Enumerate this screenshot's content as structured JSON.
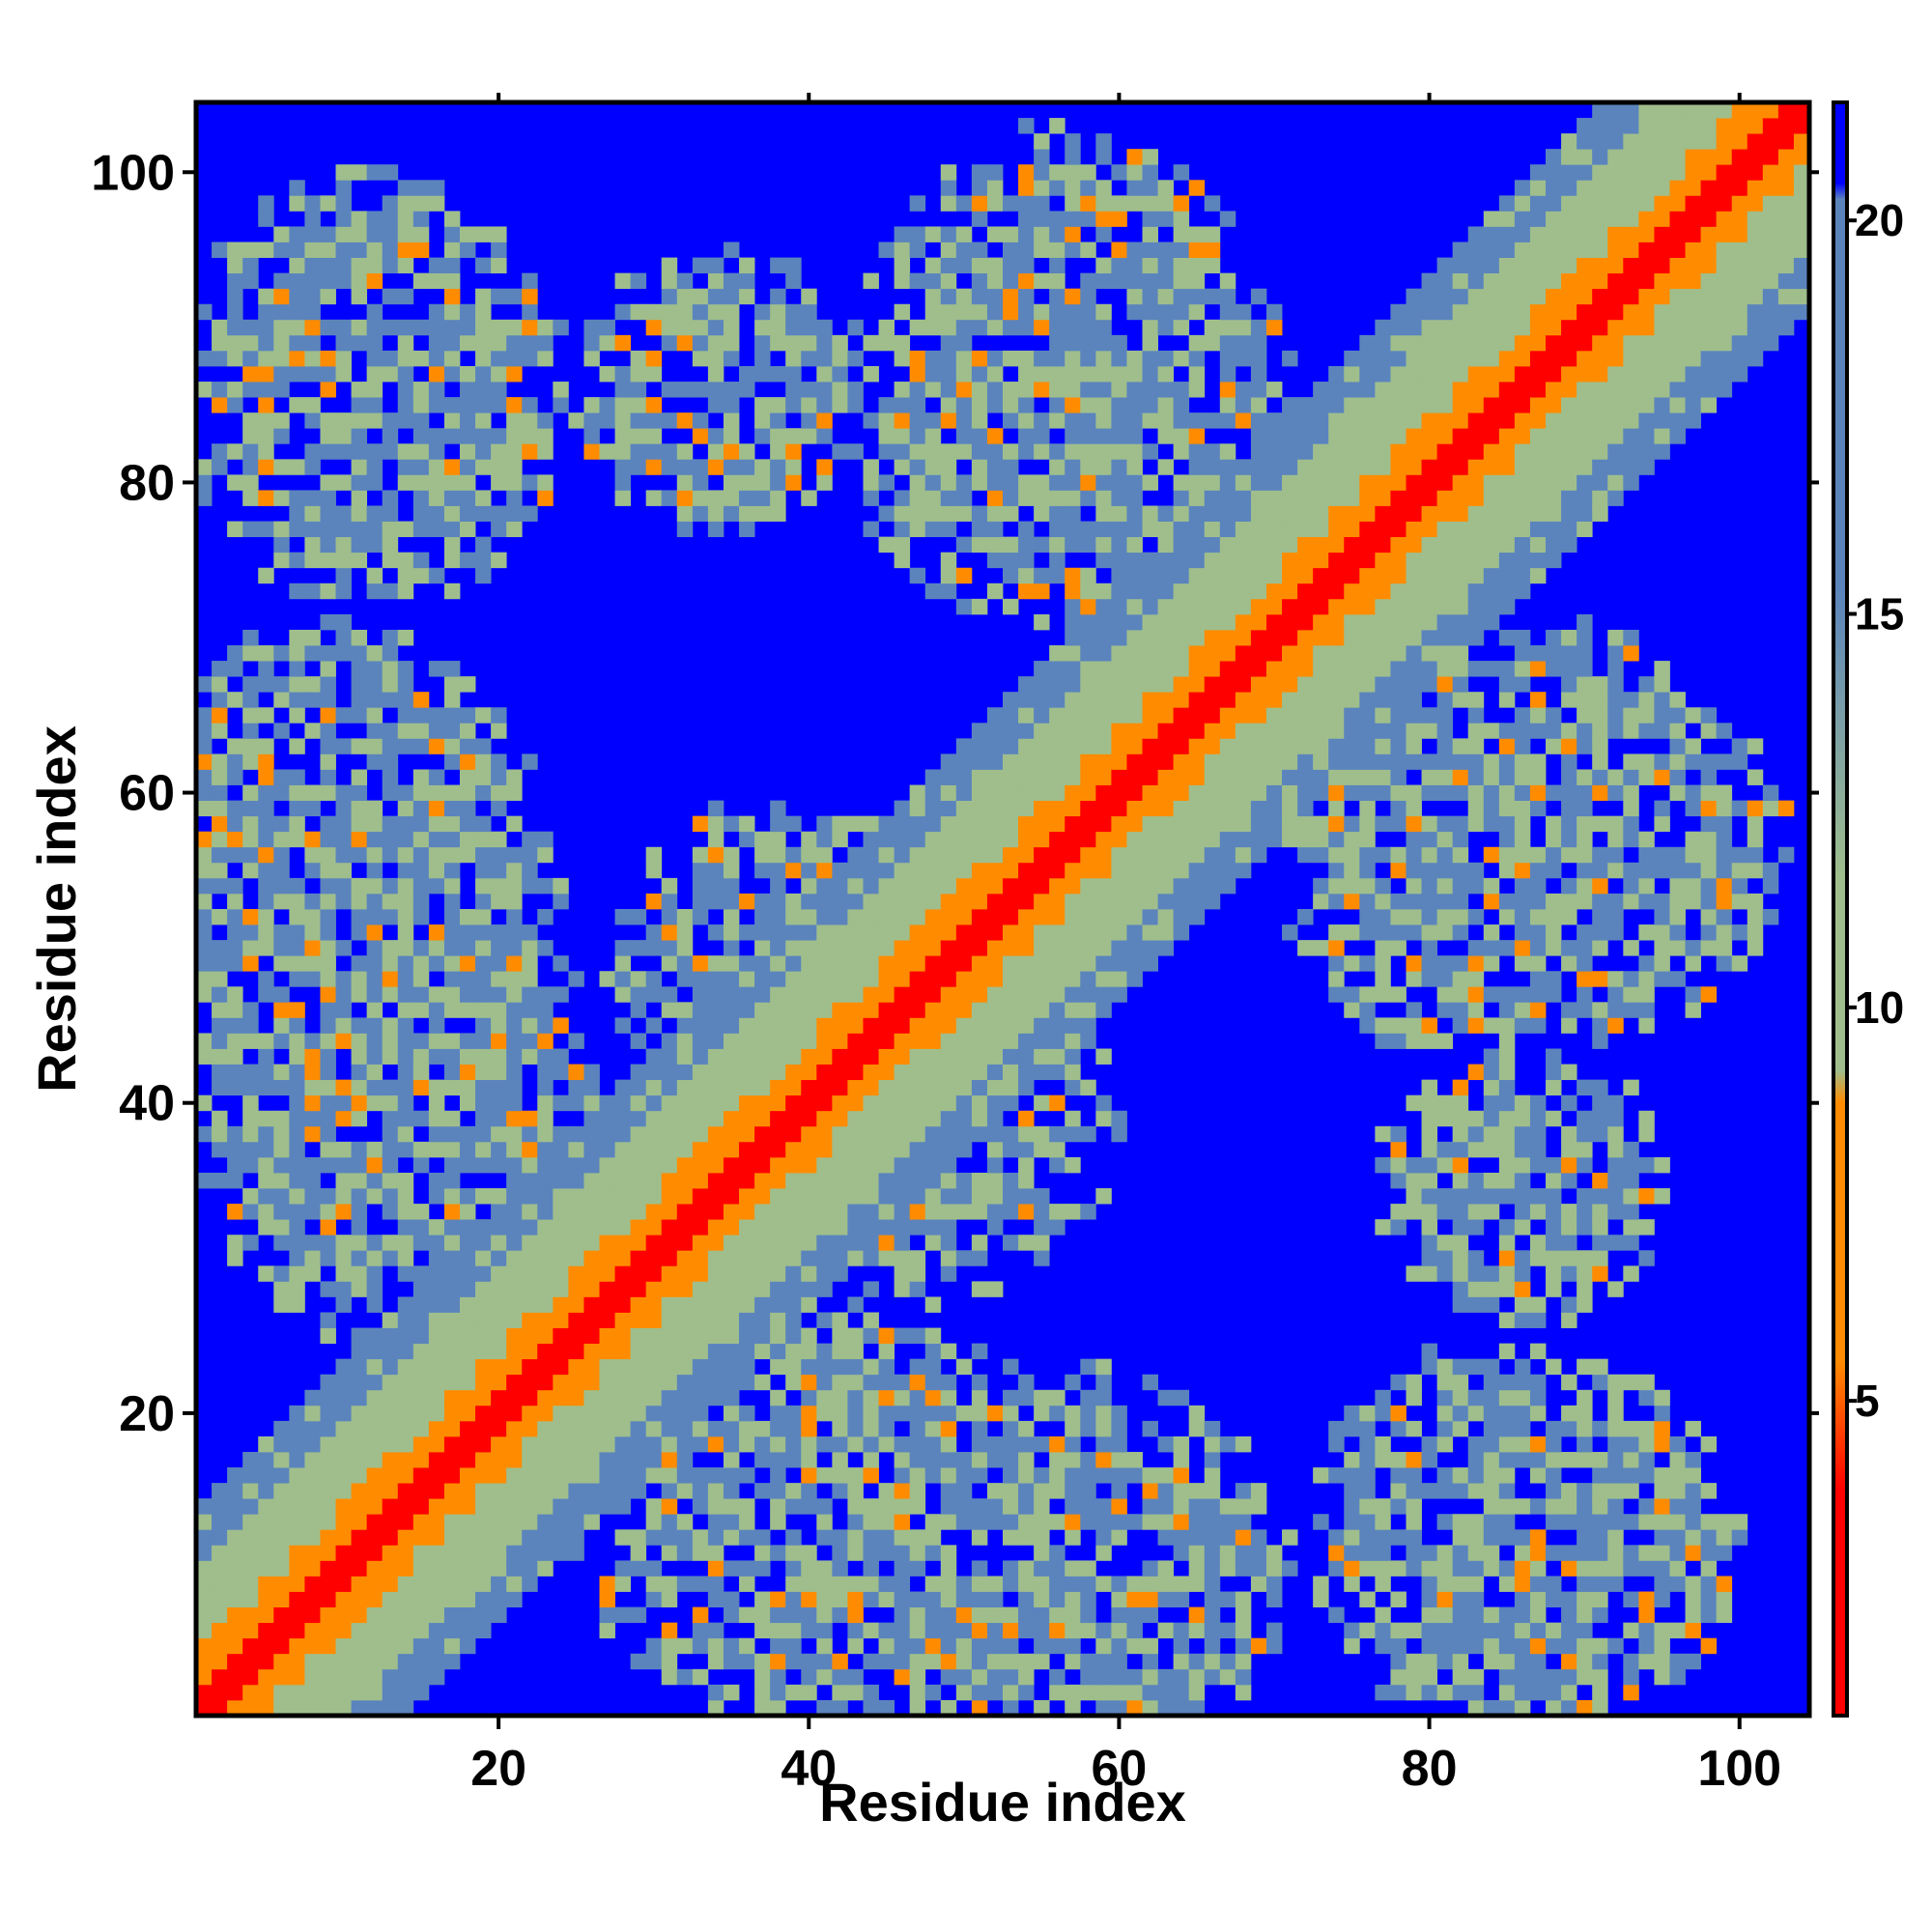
{
  "chart_data": {
    "type": "heatmap",
    "title": "",
    "xlabel": "Residue index",
    "ylabel": "Residue index",
    "n_residues": 104,
    "xlim": [
      0.5,
      104.5
    ],
    "ylim": [
      0.5,
      104.5
    ],
    "x_ticks": [
      20,
      40,
      60,
      80,
      100
    ],
    "y_ticks": [
      20,
      40,
      60,
      80,
      100
    ],
    "x_tick_labels": [
      "20",
      "40",
      "60",
      "80",
      "100"
    ],
    "y_tick_labels": [
      "20",
      "40",
      "60",
      "80",
      "100"
    ],
    "colorbar": {
      "min": 1,
      "max": 21.5,
      "ticks": [
        5,
        10,
        15,
        20
      ],
      "tick_labels": [
        "5",
        "10",
        "15",
        "20"
      ],
      "colors": {
        "near": "#ff0000",
        "close": "#ff8c00",
        "mid": "#9fbe8c",
        "far_contact": "#5b84bd",
        "background": "#0000ff"
      }
    },
    "structure": {
      "diagonal_band": "distance grows with |i-j|: red at |i-j|<=1, orange to ~4, green to ~9, steel blue to ~13, blue beyond",
      "contact_regions": [
        {
          "x": [
            1,
            23
          ],
          "y": [
            74,
            97
          ]
        },
        {
          "x": [
            45,
            68
          ],
          "y": [
            72,
            101
          ]
        },
        {
          "x": [
            1,
            22
          ],
          "y": [
            38,
            68
          ]
        },
        {
          "x": [
            29,
            48
          ],
          "y": [
            38,
            58
          ]
        },
        {
          "x": [
            26,
            55
          ],
          "y": [
            2,
            25
          ]
        },
        {
          "x": [
            52,
            70
          ],
          "y": [
            1,
            16
          ]
        },
        {
          "x": [
            77,
            98
          ],
          "y": [
            1,
            22
          ]
        },
        {
          "x": [
            72,
            98
          ],
          "y": [
            44,
            70
          ]
        },
        {
          "x": [
            78,
            94
          ],
          "y": [
            27,
            42
          ]
        }
      ]
    }
  }
}
